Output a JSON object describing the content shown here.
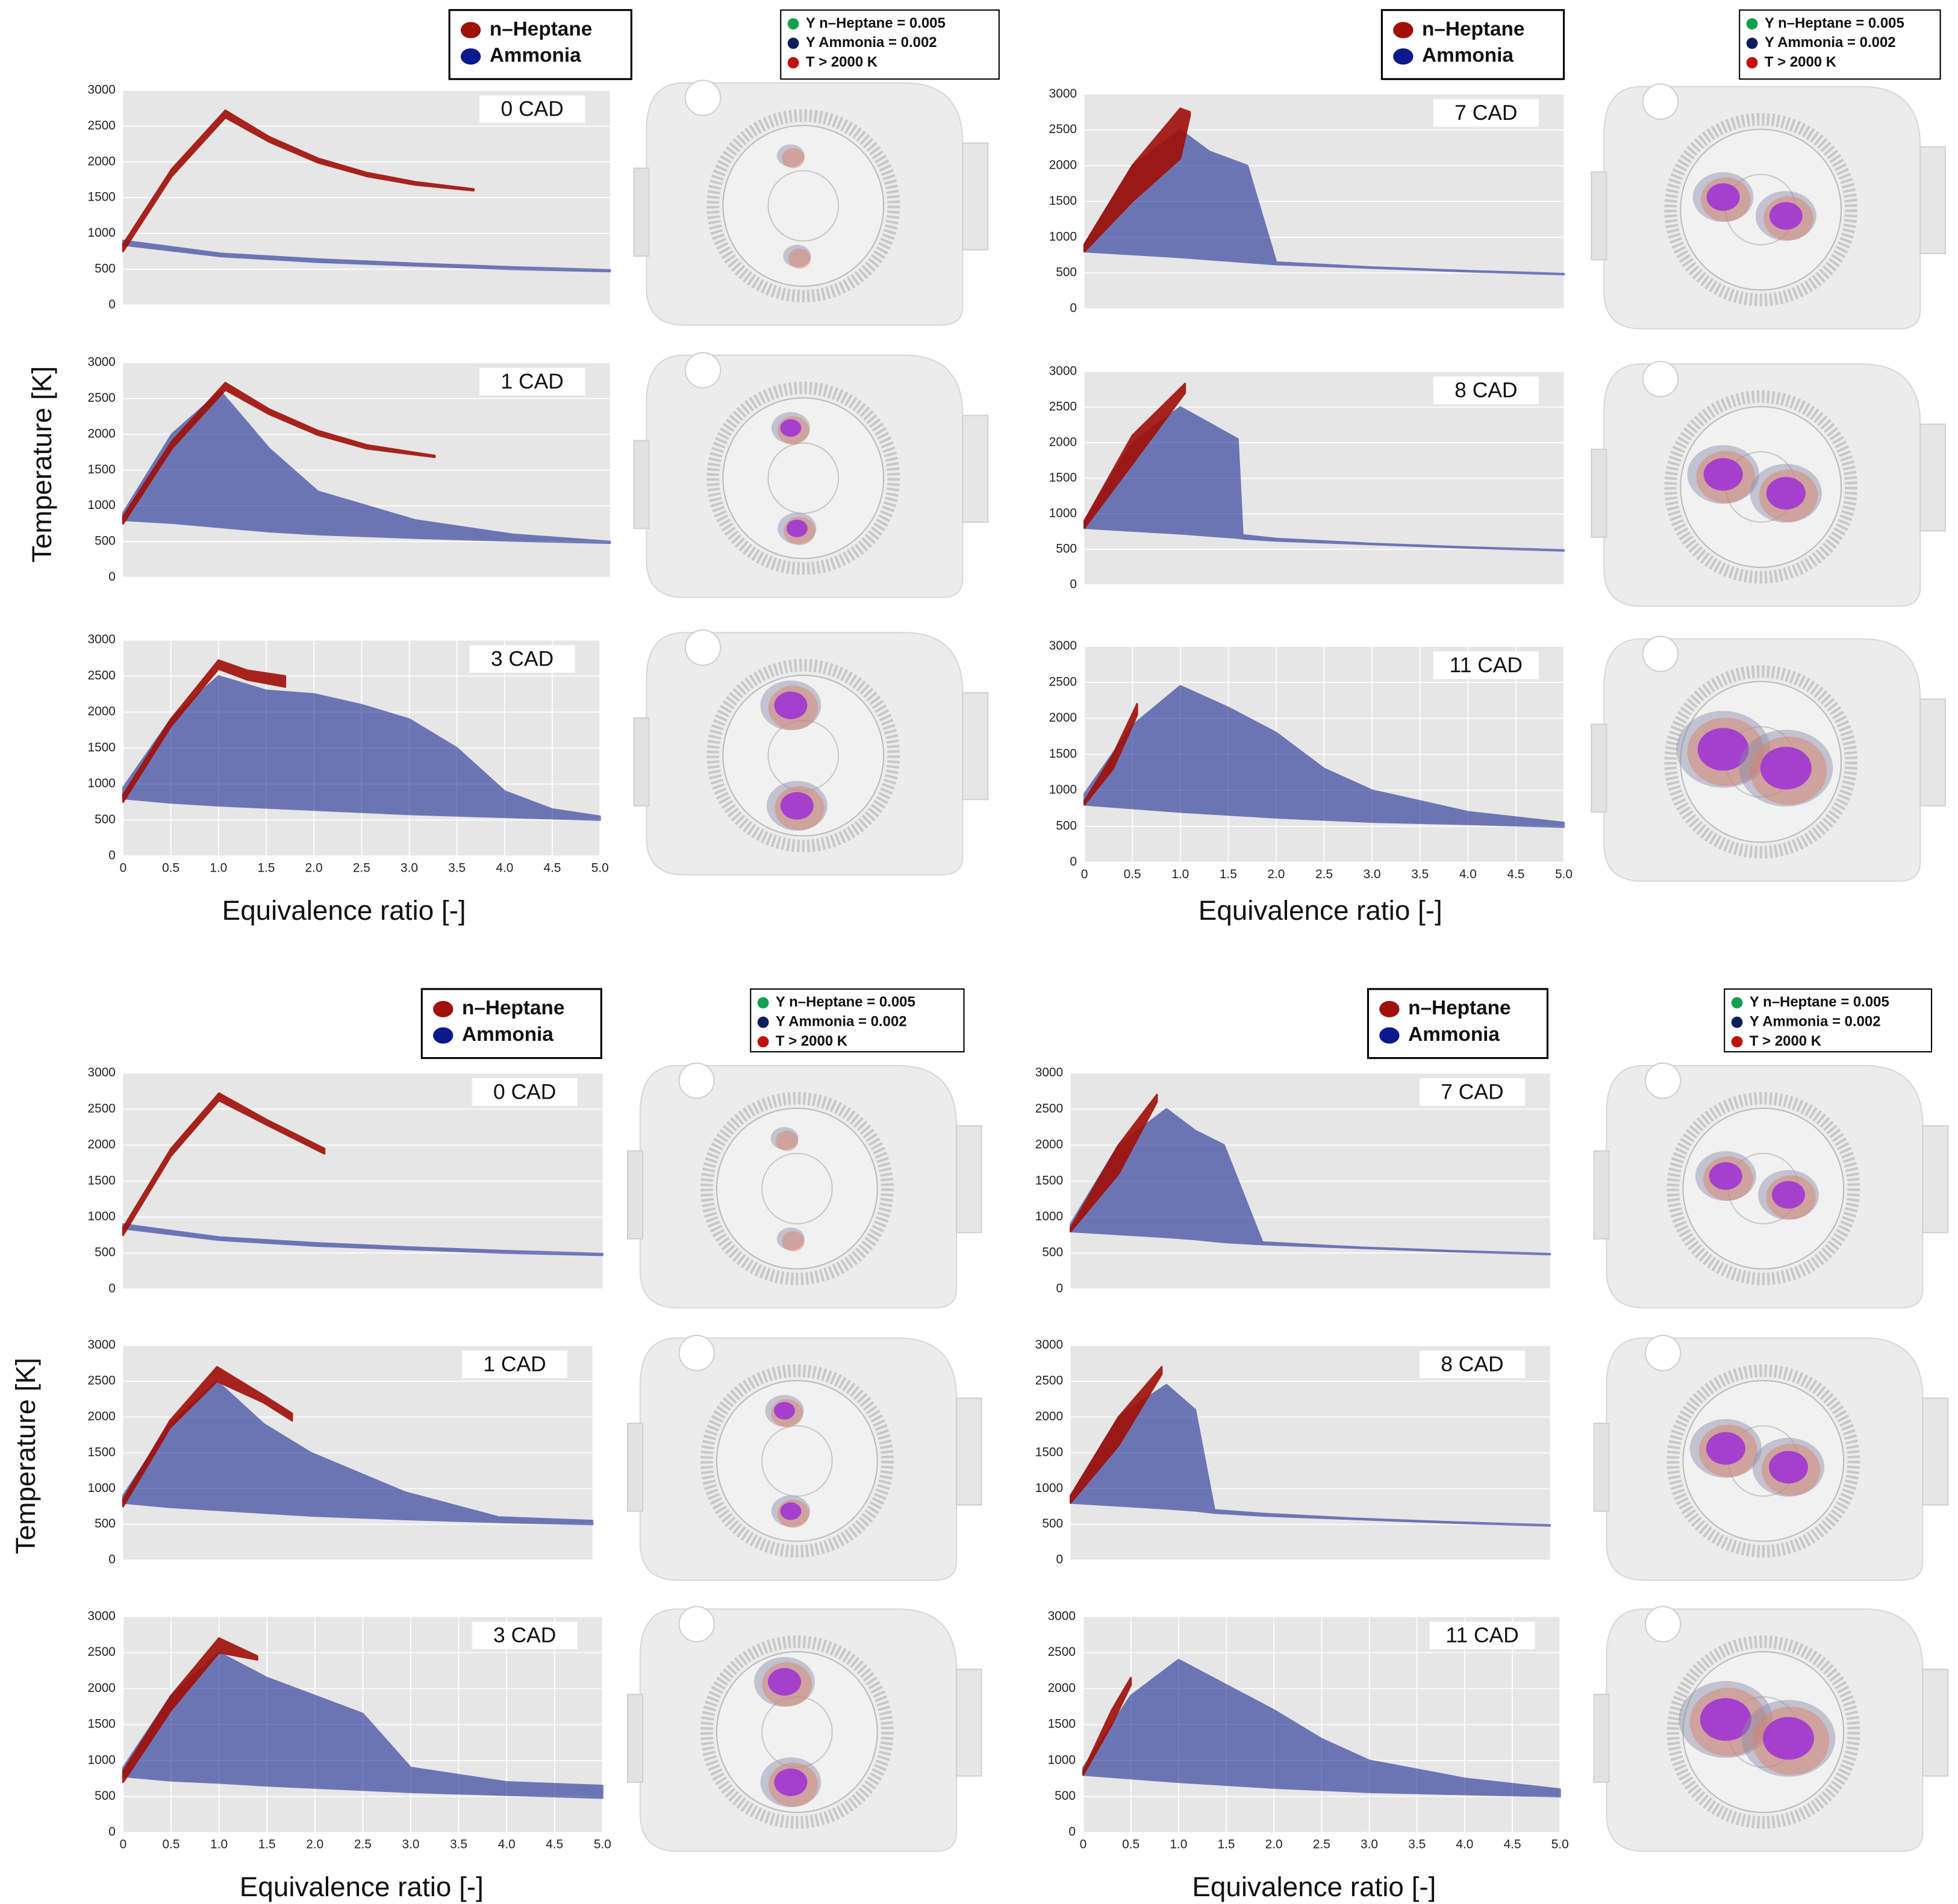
{
  "chart_data": [
    {
      "type": "area",
      "title": "0 CAD",
      "xlim": [
        0,
        5
      ],
      "ylim": [
        0,
        3000
      ],
      "yticks": [
        0,
        500,
        1000,
        1500,
        2000,
        2500,
        3000
      ],
      "grid": true,
      "series": [
        {
          "name": "n–Heptane",
          "color": "#a00f08",
          "x": [
            0,
            0.5,
            1.05,
            1.5,
            2.0,
            2.5,
            3.0,
            3.6
          ],
          "values": [
            850,
            1900,
            2720,
            2350,
            2050,
            1850,
            1720,
            1620
          ],
          "base": [
            750,
            1800,
            2620,
            2280,
            1990,
            1800,
            1680,
            1600
          ]
        },
        {
          "name": "Ammonia",
          "color": "#0a1a8c",
          "x": [
            0,
            1,
            2,
            3,
            4,
            5
          ],
          "values": [
            900,
            720,
            640,
            580,
            530,
            490
          ],
          "base": [
            840,
            680,
            600,
            550,
            500,
            470
          ]
        }
      ]
    },
    {
      "type": "area",
      "title": "1 CAD",
      "xlim": [
        0,
        5
      ],
      "ylim": [
        0,
        3000
      ],
      "yticks": [
        0,
        500,
        1000,
        1500,
        2000,
        2500,
        3000
      ],
      "grid": true,
      "series": [
        {
          "name": "n–Heptane",
          "color": "#a00f08",
          "x": [
            0,
            0.5,
            1.05,
            1.5,
            2.0,
            2.5,
            3.2
          ],
          "values": [
            850,
            1900,
            2720,
            2350,
            2050,
            1850,
            1700
          ],
          "base": [
            750,
            1800,
            2620,
            2280,
            1990,
            1800,
            1680
          ]
        },
        {
          "name": "Ammonia",
          "color": "#0a1a8c",
          "x": [
            0,
            0.5,
            1,
            1.5,
            2,
            3,
            4,
            5
          ],
          "values": [
            900,
            2000,
            2600,
            1800,
            1200,
            800,
            600,
            500
          ],
          "base": [
            800,
            760,
            700,
            640,
            600,
            550,
            510,
            480
          ]
        }
      ]
    },
    {
      "type": "area",
      "title": "3 CAD",
      "xlim": [
        0,
        5
      ],
      "ylim": [
        0,
        3000
      ],
      "yticks": [
        0,
        500,
        1000,
        1500,
        2000,
        2500,
        3000
      ],
      "xticks": [
        0,
        0.5,
        {
          "value": 1,
          "label": "1.0"
        },
        1.5,
        {
          "value": 2,
          "label": "2.0"
        },
        2.5,
        {
          "value": 3,
          "label": "3.0"
        },
        3.5,
        {
          "value": 4,
          "label": "4.0"
        },
        4.5,
        {
          "value": 5,
          "label": "5.0"
        }
      ],
      "grid": true,
      "series": [
        {
          "name": "n–Heptane",
          "color": "#a00f08",
          "x": [
            0,
            0.5,
            1,
            1.3,
            1.7
          ],
          "values": [
            850,
            1900,
            2720,
            2580,
            2500
          ],
          "base": [
            750,
            1800,
            2600,
            2450,
            2350
          ]
        },
        {
          "name": "Ammonia",
          "color": "#0a1a8c",
          "x": [
            0,
            0.5,
            1,
            1.5,
            2,
            2.5,
            3,
            3.5,
            4,
            4.5,
            5
          ],
          "values": [
            950,
            1900,
            2500,
            2300,
            2250,
            2100,
            1900,
            1500,
            900,
            650,
            550
          ],
          "base": [
            800,
            740,
            700,
            670,
            640,
            610,
            580,
            560,
            540,
            520,
            500
          ]
        }
      ]
    },
    {
      "type": "area",
      "title": "7 CAD",
      "xlim": [
        0,
        5
      ],
      "ylim": [
        0,
        3000
      ],
      "yticks": [
        0,
        500,
        1000,
        1500,
        2000,
        2500,
        3000
      ],
      "grid": true,
      "series": [
        {
          "name": "n–Heptane",
          "color": "#a00f08",
          "x": [
            0,
            0.5,
            1,
            1.1
          ],
          "values": [
            900,
            2000,
            2800,
            2750
          ],
          "base": [
            800,
            1500,
            2100,
            2700
          ]
        },
        {
          "name": "Ammonia",
          "color": "#0a1a8c",
          "x": [
            0,
            0.5,
            1,
            1.3,
            1.7,
            2,
            3,
            4,
            5
          ],
          "values": [
            900,
            2000,
            2500,
            2200,
            2000,
            650,
            580,
            530,
            490
          ],
          "base": [
            800,
            760,
            720,
            690,
            650,
            620,
            570,
            520,
            480
          ]
        }
      ]
    },
    {
      "type": "area",
      "title": "8 CAD",
      "xlim": [
        0,
        5
      ],
      "ylim": [
        0,
        3000
      ],
      "yticks": [
        0,
        500,
        1000,
        1500,
        2000,
        2500,
        3000
      ],
      "grid": true,
      "series": [
        {
          "name": "n–Heptane",
          "color": "#a00f08",
          "x": [
            0,
            0.5,
            1.05
          ],
          "values": [
            900,
            2100,
            2830
          ],
          "base": [
            800,
            1700,
            2700
          ]
        },
        {
          "name": "Ammonia",
          "color": "#0a1a8c",
          "x": [
            0,
            0.5,
            1,
            1.6,
            1.65,
            2,
            3,
            4,
            5
          ],
          "values": [
            900,
            2000,
            2500,
            2050,
            700,
            650,
            580,
            530,
            490
          ],
          "base": [
            800,
            760,
            720,
            660,
            650,
            620,
            570,
            520,
            480
          ]
        }
      ]
    },
    {
      "type": "area",
      "title": "11 CAD",
      "xlim": [
        0,
        5
      ],
      "ylim": [
        0,
        3000
      ],
      "yticks": [
        0,
        500,
        1000,
        1500,
        2000,
        2500,
        3000
      ],
      "xticks": [
        0,
        0.5,
        {
          "value": 1,
          "label": "1.0"
        },
        1.5,
        {
          "value": 2,
          "label": "2.0"
        },
        2.5,
        {
          "value": 3,
          "label": "3.0"
        },
        3.5,
        {
          "value": 4,
          "label": "4.0"
        },
        4.5,
        {
          "value": 5,
          "label": "5.0"
        }
      ],
      "grid": true,
      "series": [
        {
          "name": "n–Heptane",
          "color": "#a00f08",
          "x": [
            0,
            0.3,
            0.55
          ],
          "values": [
            850,
            1500,
            2200
          ],
          "base": [
            800,
            1300,
            2050
          ]
        },
        {
          "name": "Ammonia",
          "color": "#0a1a8c",
          "x": [
            0,
            0.5,
            1,
            1.5,
            2,
            2.5,
            3,
            4,
            5
          ],
          "values": [
            950,
            1900,
            2450,
            2150,
            1800,
            1300,
            1000,
            700,
            550
          ],
          "base": [
            800,
            750,
            700,
            660,
            620,
            590,
            560,
            530,
            490
          ]
        }
      ]
    },
    {
      "type": "area",
      "title": "0 CAD",
      "xlim": [
        0,
        5
      ],
      "ylim": [
        0,
        3000
      ],
      "yticks": [
        0,
        500,
        1000,
        1500,
        2000,
        2500,
        3000
      ],
      "grid": true,
      "series": [
        {
          "name": "n–Heptane",
          "color": "#a00f08",
          "x": [
            0,
            0.5,
            1,
            1.5,
            2.1
          ],
          "values": [
            850,
            1950,
            2720,
            2350,
            1950
          ],
          "base": [
            750,
            1850,
            2620,
            2280,
            1880
          ]
        },
        {
          "name": "Ammonia",
          "color": "#0a1a8c",
          "x": [
            0,
            1,
            2,
            3,
            4,
            5
          ],
          "values": [
            900,
            720,
            640,
            580,
            530,
            490
          ],
          "base": [
            840,
            680,
            600,
            550,
            500,
            470
          ]
        }
      ]
    },
    {
      "type": "area",
      "title": "1 CAD",
      "xlim": [
        0,
        5
      ],
      "ylim": [
        0,
        3000
      ],
      "yticks": [
        0,
        500,
        1000,
        1500,
        2000,
        2500,
        3000
      ],
      "grid": true,
      "series": [
        {
          "name": "n–Heptane",
          "color": "#a00f08",
          "x": [
            0,
            0.5,
            1,
            1.5,
            1.8
          ],
          "values": [
            850,
            1950,
            2700,
            2300,
            2050
          ],
          "base": [
            750,
            1850,
            2500,
            2200,
            1950
          ]
        },
        {
          "name": "Ammonia",
          "color": "#0a1a8c",
          "x": [
            0,
            0.5,
            1,
            1.5,
            2,
            3,
            4,
            5
          ],
          "values": [
            900,
            1900,
            2500,
            1900,
            1500,
            950,
            600,
            550
          ],
          "base": [
            800,
            740,
            700,
            660,
            620,
            570,
            530,
            500
          ]
        }
      ]
    },
    {
      "type": "area",
      "title": "3 CAD",
      "xlim": [
        0,
        5
      ],
      "ylim": [
        0,
        3000
      ],
      "yticks": [
        0,
        500,
        1000,
        1500,
        2000,
        2500,
        3000
      ],
      "xticks": [
        0,
        0.5,
        {
          "value": 1,
          "label": "1.0"
        },
        1.5,
        {
          "value": 2,
          "label": "2.0"
        },
        2.5,
        {
          "value": 3,
          "label": "3.0"
        },
        3.5,
        {
          "value": 4,
          "label": "4.0"
        },
        4.5,
        {
          "value": 5,
          "label": "5.0"
        }
      ],
      "grid": true,
      "series": [
        {
          "name": "n–Heptane",
          "color": "#a00f08",
          "x": [
            0,
            0.5,
            1,
            1.4
          ],
          "values": [
            850,
            1900,
            2700,
            2450
          ],
          "base": [
            700,
            1700,
            2500,
            2400
          ]
        },
        {
          "name": "Ammonia",
          "color": "#0a1a8c",
          "x": [
            0,
            0.5,
            1,
            1.5,
            2,
            2.5,
            3,
            4,
            5
          ],
          "values": [
            900,
            1900,
            2500,
            2150,
            1900,
            1650,
            900,
            700,
            650
          ],
          "base": [
            780,
            720,
            690,
            650,
            620,
            590,
            560,
            520,
            480
          ]
        }
      ]
    },
    {
      "type": "area",
      "title": "7 CAD",
      "xlim": [
        0,
        5
      ],
      "ylim": [
        0,
        3000
      ],
      "yticks": [
        0,
        500,
        1000,
        1500,
        2000,
        2500,
        3000
      ],
      "grid": true,
      "series": [
        {
          "name": "n–Heptane",
          "color": "#a00f08",
          "x": [
            0,
            0.5,
            0.9
          ],
          "values": [
            850,
            2000,
            2700
          ],
          "base": [
            800,
            1600,
            2600
          ]
        },
        {
          "name": "Ammonia",
          "color": "#0a1a8c",
          "x": [
            0,
            0.5,
            1,
            1.3,
            1.6,
            2,
            3,
            4,
            5
          ],
          "values": [
            900,
            2000,
            2500,
            2200,
            2000,
            650,
            580,
            530,
            490
          ],
          "base": [
            800,
            760,
            720,
            690,
            650,
            620,
            570,
            520,
            480
          ]
        }
      ]
    },
    {
      "type": "area",
      "title": "8 CAD",
      "xlim": [
        0,
        5
      ],
      "ylim": [
        0,
        3000
      ],
      "yticks": [
        0,
        500,
        1000,
        1500,
        2000,
        2500,
        3000
      ],
      "grid": true,
      "series": [
        {
          "name": "n–Heptane",
          "color": "#a00f08",
          "x": [
            0,
            0.5,
            0.95
          ],
          "values": [
            900,
            2000,
            2700
          ],
          "base": [
            800,
            1600,
            2600
          ]
        },
        {
          "name": "Ammonia",
          "color": "#0a1a8c",
          "x": [
            0,
            0.5,
            1,
            1.3,
            1.5,
            2,
            3,
            4,
            5
          ],
          "values": [
            900,
            2000,
            2450,
            2100,
            700,
            650,
            580,
            530,
            490
          ],
          "base": [
            800,
            760,
            720,
            690,
            660,
            620,
            570,
            520,
            480
          ]
        }
      ]
    },
    {
      "type": "area",
      "title": "11 CAD",
      "xlim": [
        0,
        5
      ],
      "ylim": [
        0,
        3000
      ],
      "yticks": [
        0,
        500,
        1000,
        1500,
        2000,
        2500,
        3000
      ],
      "xticks": [
        0,
        0.5,
        {
          "value": 1,
          "label": "1.0"
        },
        1.5,
        {
          "value": 2,
          "label": "2.0"
        },
        2.5,
        {
          "value": 3,
          "label": "3.0"
        },
        3.5,
        {
          "value": 4,
          "label": "4.0"
        },
        4.5,
        {
          "value": 5,
          "label": "5.0"
        }
      ],
      "grid": true,
      "series": [
        {
          "name": "n–Heptane",
          "color": "#a00f08",
          "x": [
            0,
            0.3,
            0.5
          ],
          "values": [
            850,
            1700,
            2150
          ],
          "base": [
            800,
            1500,
            2050
          ]
        },
        {
          "name": "Ammonia",
          "color": "#0a1a8c",
          "x": [
            0,
            0.5,
            1,
            1.5,
            2,
            2.5,
            3,
            4,
            5
          ],
          "values": [
            900,
            1900,
            2400,
            2050,
            1700,
            1300,
            1000,
            750,
            600
          ],
          "base": [
            800,
            750,
            700,
            660,
            620,
            590,
            560,
            530,
            500
          ]
        }
      ]
    }
  ],
  "quadrants": [
    {
      "x_label": "Equivalence ratio [-]",
      "render_legend": [
        {
          "label": "Y n–Heptane = 0.005",
          "color": "#12a050"
        },
        {
          "label": "Y Ammonia = 0.002",
          "color": "#0a1f5c"
        },
        {
          "label": "T > 2000 K",
          "color": "#c01010"
        }
      ]
    },
    {
      "x_label": "Equivalence ratio [-]",
      "render_legend": [
        {
          "label": "Y n–Heptane = 0.005",
          "color": "#12a050"
        },
        {
          "label": "Y Ammonia = 0.002",
          "color": "#0a1f5c"
        },
        {
          "label": "T > 2000 K",
          "color": "#c01010"
        }
      ]
    },
    {
      "x_label": "Equivalence ratio [-]",
      "render_legend": [
        {
          "label": "Y n–Heptane = 0.005",
          "color": "#12a050"
        },
        {
          "label": "Y Ammonia = 0.002",
          "color": "#0a1f5c"
        },
        {
          "label": "T > 2000 K",
          "color": "#c01010"
        }
      ]
    },
    {
      "x_label": "Equivalence ratio [-]",
      "render_legend": [
        {
          "label": "Y n–Heptane = 0.005",
          "color": "#12a050"
        },
        {
          "label": "Y Ammonia = 0.002",
          "color": "#0a1f5c"
        },
        {
          "label": "T > 2000 K",
          "color": "#c01010"
        }
      ]
    }
  ],
  "y_labels": [
    "Temperature [K]",
    "Temperature [K]"
  ]
}
